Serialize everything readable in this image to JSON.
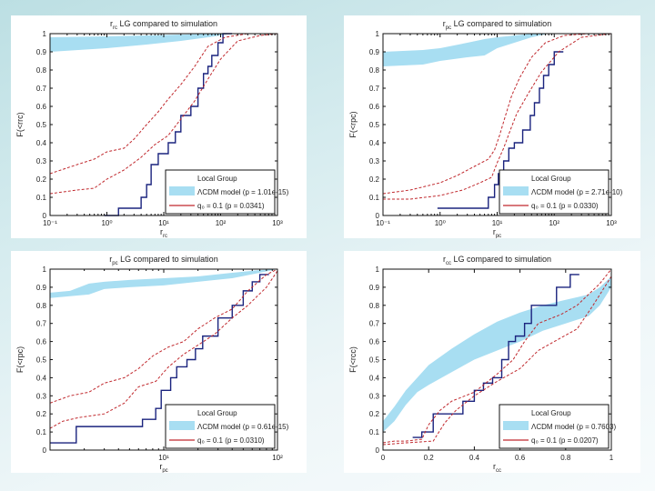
{
  "chart_data": [
    {
      "type": "line",
      "title": "r_rc LG compared to simulation",
      "xlabel": "r_rc",
      "ylabel": "F(<r_rc)",
      "xscale": "log",
      "xlim": [
        0.1,
        1000
      ],
      "ylim": [
        0,
        1
      ],
      "xticks": [
        "10⁻¹",
        "10⁰",
        "10¹",
        "10²",
        "10³"
      ],
      "xtick_values": [
        0.1,
        1,
        10,
        100,
        1000
      ],
      "yticks": [
        "0",
        "0.1",
        "0.2",
        "0.3",
        "0.4",
        "0.5",
        "0.6",
        "0.7",
        "0.8",
        "0.9",
        "1"
      ],
      "legend_position": "bottom-right",
      "legend": [
        "Local Group",
        "ΛCDM model (p = 1.01e-15)",
        "q₀ = 0.1 (p = 0.0341)"
      ],
      "band": {
        "name": "ΛCDM model",
        "color": "#a8def2",
        "x": [
          0.1,
          1,
          5,
          20,
          60,
          100,
          150
        ],
        "lower": [
          0.9,
          0.92,
          0.94,
          0.96,
          0.98,
          0.99,
          1.0
        ],
        "upper": [
          0.98,
          0.985,
          0.99,
          0.995,
          0.999,
          1.0,
          1.0
        ]
      },
      "series": [
        {
          "name": "Local Group",
          "color": "#1a237e",
          "style": "step",
          "x": [
            0.9,
            1.6,
            4.0,
            5.0,
            6.0,
            8.0,
            12.0,
            16.0,
            20.0,
            30.0,
            40.0,
            50.0,
            60.0,
            70.0,
            90.0,
            110.0
          ],
          "y": [
            0.0,
            0.04,
            0.1,
            0.17,
            0.28,
            0.34,
            0.4,
            0.46,
            0.55,
            0.6,
            0.7,
            0.78,
            0.82,
            0.88,
            0.95,
            1.0
          ]
        },
        {
          "name": "q₀ = 0.1 upper",
          "color": "#c0282d",
          "style": "dashed",
          "x": [
            0.1,
            0.3,
            0.6,
            1.0,
            2.0,
            3.0,
            5.0,
            8.0,
            12.0,
            20.0,
            35.0,
            60.0,
            120.0,
            300.0,
            1000.0
          ],
          "y": [
            0.23,
            0.28,
            0.31,
            0.35,
            0.37,
            0.42,
            0.5,
            0.57,
            0.64,
            0.72,
            0.82,
            0.93,
            0.98,
            1.0,
            1.0
          ]
        },
        {
          "name": "q₀ = 0.1 lower",
          "color": "#c0282d",
          "style": "dashed",
          "x": [
            0.1,
            0.3,
            0.6,
            1.0,
            2.0,
            4.0,
            7.0,
            12.0,
            20.0,
            35.0,
            60.0,
            100.0,
            200.0,
            500.0,
            1000.0
          ],
          "y": [
            0.12,
            0.14,
            0.15,
            0.2,
            0.25,
            0.32,
            0.39,
            0.44,
            0.53,
            0.63,
            0.75,
            0.86,
            0.96,
            0.99,
            1.0
          ]
        }
      ]
    },
    {
      "type": "line",
      "title": "r_pc LG compared to simulation",
      "xlabel": "r_pc",
      "ylabel": "F(<r_pc)",
      "xscale": "log",
      "xlim": [
        0.1,
        1000
      ],
      "ylim": [
        0,
        1
      ],
      "xticks": [
        "10⁻¹",
        "10⁰",
        "10¹",
        "10²",
        "10³"
      ],
      "xtick_values": [
        0.1,
        1,
        10,
        100,
        1000
      ],
      "yticks": [
        "0",
        "0.1",
        "0.2",
        "0.3",
        "0.4",
        "0.5",
        "0.6",
        "0.7",
        "0.8",
        "0.9",
        "1"
      ],
      "legend_position": "bottom-right",
      "legend": [
        "Local Group",
        "ΛCDM model (p = 2.71e-10)",
        "q₀ = 0.1 (p = 0.0330)"
      ],
      "band": {
        "name": "ΛCDM model",
        "color": "#a8def2",
        "x": [
          0.1,
          0.5,
          1,
          3,
          6,
          10,
          20,
          40,
          80
        ],
        "lower": [
          0.82,
          0.83,
          0.85,
          0.87,
          0.88,
          0.92,
          0.95,
          0.98,
          1.0
        ],
        "upper": [
          0.9,
          0.91,
          0.92,
          0.95,
          0.97,
          0.98,
          0.99,
          1.0,
          1.0
        ]
      },
      "series": [
        {
          "name": "Local Group",
          "color": "#1a237e",
          "style": "step",
          "x": [
            0.9,
            7.0,
            9.0,
            10.5,
            13.0,
            16.0,
            20.0,
            28.0,
            38.0,
            45.0,
            55.0,
            65.0,
            80.0,
            100.0
          ],
          "y": [
            0.04,
            0.1,
            0.17,
            0.23,
            0.3,
            0.37,
            0.4,
            0.47,
            0.55,
            0.62,
            0.7,
            0.77,
            0.83,
            0.9
          ]
        },
        {
          "name": "q₀ = 0.1 upper",
          "color": "#c0282d",
          "style": "dashed",
          "x": [
            0.1,
            0.3,
            1.0,
            2.0,
            4.0,
            7.0,
            9.0,
            11.0,
            14.0,
            18.0,
            25.0,
            40.0,
            70.0,
            150.0,
            400.0
          ],
          "y": [
            0.12,
            0.14,
            0.18,
            0.22,
            0.27,
            0.31,
            0.36,
            0.44,
            0.55,
            0.66,
            0.76,
            0.87,
            0.95,
            0.99,
            1.0
          ]
        },
        {
          "name": "q₀ = 0.1 lower",
          "color": "#c0282d",
          "style": "dashed",
          "x": [
            0.1,
            0.3,
            1.0,
            2.5,
            5.0,
            8.0,
            10.0,
            13.0,
            17.0,
            22.0,
            35.0,
            60.0,
            120.0,
            300.0,
            1000.0
          ],
          "y": [
            0.09,
            0.09,
            0.11,
            0.14,
            0.18,
            0.21,
            0.29,
            0.37,
            0.47,
            0.56,
            0.67,
            0.79,
            0.9,
            0.98,
            1.0
          ]
        }
      ]
    },
    {
      "type": "line",
      "title": "r_pc LG compared to simulation",
      "xlabel": "r_pc",
      "ylabel": "F(<r_pc)",
      "xscale": "log",
      "xlim": [
        1,
        100
      ],
      "ylim": [
        0,
        1
      ],
      "xticks": [
        "10¹",
        "10²"
      ],
      "xtick_values": [
        10,
        100
      ],
      "yticks": [
        "0",
        "0.1",
        "0.2",
        "0.3",
        "0.4",
        "0.5",
        "0.6",
        "0.7",
        "0.8",
        "0.9",
        "1"
      ],
      "legend_position": "bottom-right",
      "legend": [
        "Local Group",
        "ΛCDM model (p = 0.61e-15)",
        "q₀ = 0.1 (p = 0.0310)"
      ],
      "band": {
        "name": "ΛCDM model",
        "color": "#a8def2",
        "x": [
          1,
          1.5,
          2.2,
          3,
          5,
          10,
          20,
          40,
          70,
          100
        ],
        "lower": [
          0.84,
          0.85,
          0.86,
          0.89,
          0.9,
          0.91,
          0.93,
          0.95,
          0.98,
          1.0
        ],
        "upper": [
          0.87,
          0.88,
          0.92,
          0.93,
          0.94,
          0.95,
          0.96,
          0.98,
          0.995,
          1.0
        ]
      },
      "series": [
        {
          "name": "Local Group",
          "color": "#1a237e",
          "style": "step",
          "x": [
            1.0,
            1.6,
            1.7,
            6.5,
            8.5,
            9.5,
            11.5,
            13.0,
            16.0,
            19.0,
            22.0,
            30.0,
            40.0,
            50.0,
            60.0,
            70.0
          ],
          "y": [
            0.04,
            0.04,
            0.13,
            0.17,
            0.23,
            0.33,
            0.4,
            0.46,
            0.5,
            0.56,
            0.63,
            0.73,
            0.8,
            0.88,
            0.93,
            0.97
          ]
        },
        {
          "name": "q₀ = 0.1 upper",
          "color": "#c0282d",
          "style": "dashed",
          "x": [
            1.0,
            1.5,
            2.2,
            3.0,
            4.5,
            6.0,
            8.0,
            11.0,
            15.0,
            20.0,
            28.0,
            40.0,
            55.0,
            80.0,
            100.0
          ],
          "y": [
            0.26,
            0.3,
            0.32,
            0.37,
            0.4,
            0.45,
            0.52,
            0.57,
            0.6,
            0.67,
            0.73,
            0.78,
            0.88,
            0.97,
            1.0
          ]
        },
        {
          "name": "q₀ = 0.1 lower",
          "color": "#c0282d",
          "style": "dashed",
          "x": [
            1.0,
            1.3,
            1.8,
            3.0,
            4.5,
            6.0,
            8.5,
            11.0,
            15.0,
            20.0,
            28.0,
            40.0,
            55.0,
            80.0,
            100.0
          ],
          "y": [
            0.12,
            0.16,
            0.18,
            0.2,
            0.26,
            0.35,
            0.38,
            0.46,
            0.53,
            0.58,
            0.64,
            0.73,
            0.8,
            0.9,
            0.99
          ]
        }
      ]
    },
    {
      "type": "line",
      "title": "r_cc LG compared to simulation",
      "xlabel": "r_cc",
      "ylabel": "F(<r_cc)",
      "xscale": "linear",
      "xlim": [
        0,
        1
      ],
      "ylim": [
        0,
        1
      ],
      "xticks": [
        "0",
        "0.2",
        "0.4",
        "0.6",
        "0.8",
        "1"
      ],
      "xtick_values": [
        0,
        0.2,
        0.4,
        0.6,
        0.8,
        1
      ],
      "yticks": [
        "0",
        "0.1",
        "0.2",
        "0.3",
        "0.4",
        "0.5",
        "0.6",
        "0.7",
        "0.8",
        "0.9",
        "1"
      ],
      "legend_position": "bottom-right",
      "legend": [
        "Local Group",
        "ΛCDM model (p = 0.7603)",
        "q₀ = 0.1 (p = 0.0207)"
      ],
      "band": {
        "name": "ΛCDM model",
        "color": "#a8def2",
        "x": [
          0,
          0.05,
          0.1,
          0.15,
          0.2,
          0.3,
          0.4,
          0.5,
          0.6,
          0.7,
          0.8,
          0.9,
          0.95,
          1.0
        ],
        "lower": [
          0.1,
          0.16,
          0.25,
          0.32,
          0.36,
          0.43,
          0.5,
          0.55,
          0.6,
          0.66,
          0.7,
          0.74,
          0.8,
          0.9
        ],
        "upper": [
          0.16,
          0.24,
          0.33,
          0.4,
          0.47,
          0.56,
          0.64,
          0.71,
          0.76,
          0.8,
          0.83,
          0.86,
          0.9,
          0.96
        ]
      },
      "series": [
        {
          "name": "Local Group",
          "color": "#1a237e",
          "style": "step",
          "x": [
            0.13,
            0.17,
            0.22,
            0.3,
            0.35,
            0.4,
            0.44,
            0.48,
            0.52,
            0.55,
            0.58,
            0.62,
            0.65,
            0.72,
            0.76,
            0.82
          ],
          "y": [
            0.07,
            0.1,
            0.2,
            0.2,
            0.27,
            0.33,
            0.37,
            0.4,
            0.5,
            0.6,
            0.63,
            0.7,
            0.8,
            0.8,
            0.9,
            0.97
          ]
        },
        {
          "name": "q₀ = 0.1 upper",
          "color": "#c0282d",
          "style": "dashed",
          "x": [
            0,
            0.05,
            0.1,
            0.17,
            0.2,
            0.25,
            0.3,
            0.4,
            0.5,
            0.57,
            0.62,
            0.68,
            0.78,
            0.85,
            0.95,
            1.0
          ],
          "y": [
            0.04,
            0.05,
            0.05,
            0.06,
            0.14,
            0.22,
            0.27,
            0.32,
            0.42,
            0.5,
            0.6,
            0.7,
            0.75,
            0.8,
            0.92,
            1.0
          ]
        },
        {
          "name": "q₀ = 0.1 lower",
          "color": "#c0282d",
          "style": "dashed",
          "x": [
            0,
            0.1,
            0.22,
            0.27,
            0.32,
            0.4,
            0.5,
            0.6,
            0.68,
            0.75,
            0.85,
            0.92,
            1.0
          ],
          "y": [
            0.03,
            0.04,
            0.05,
            0.15,
            0.22,
            0.3,
            0.38,
            0.45,
            0.55,
            0.6,
            0.67,
            0.8,
            0.96
          ]
        }
      ]
    }
  ]
}
